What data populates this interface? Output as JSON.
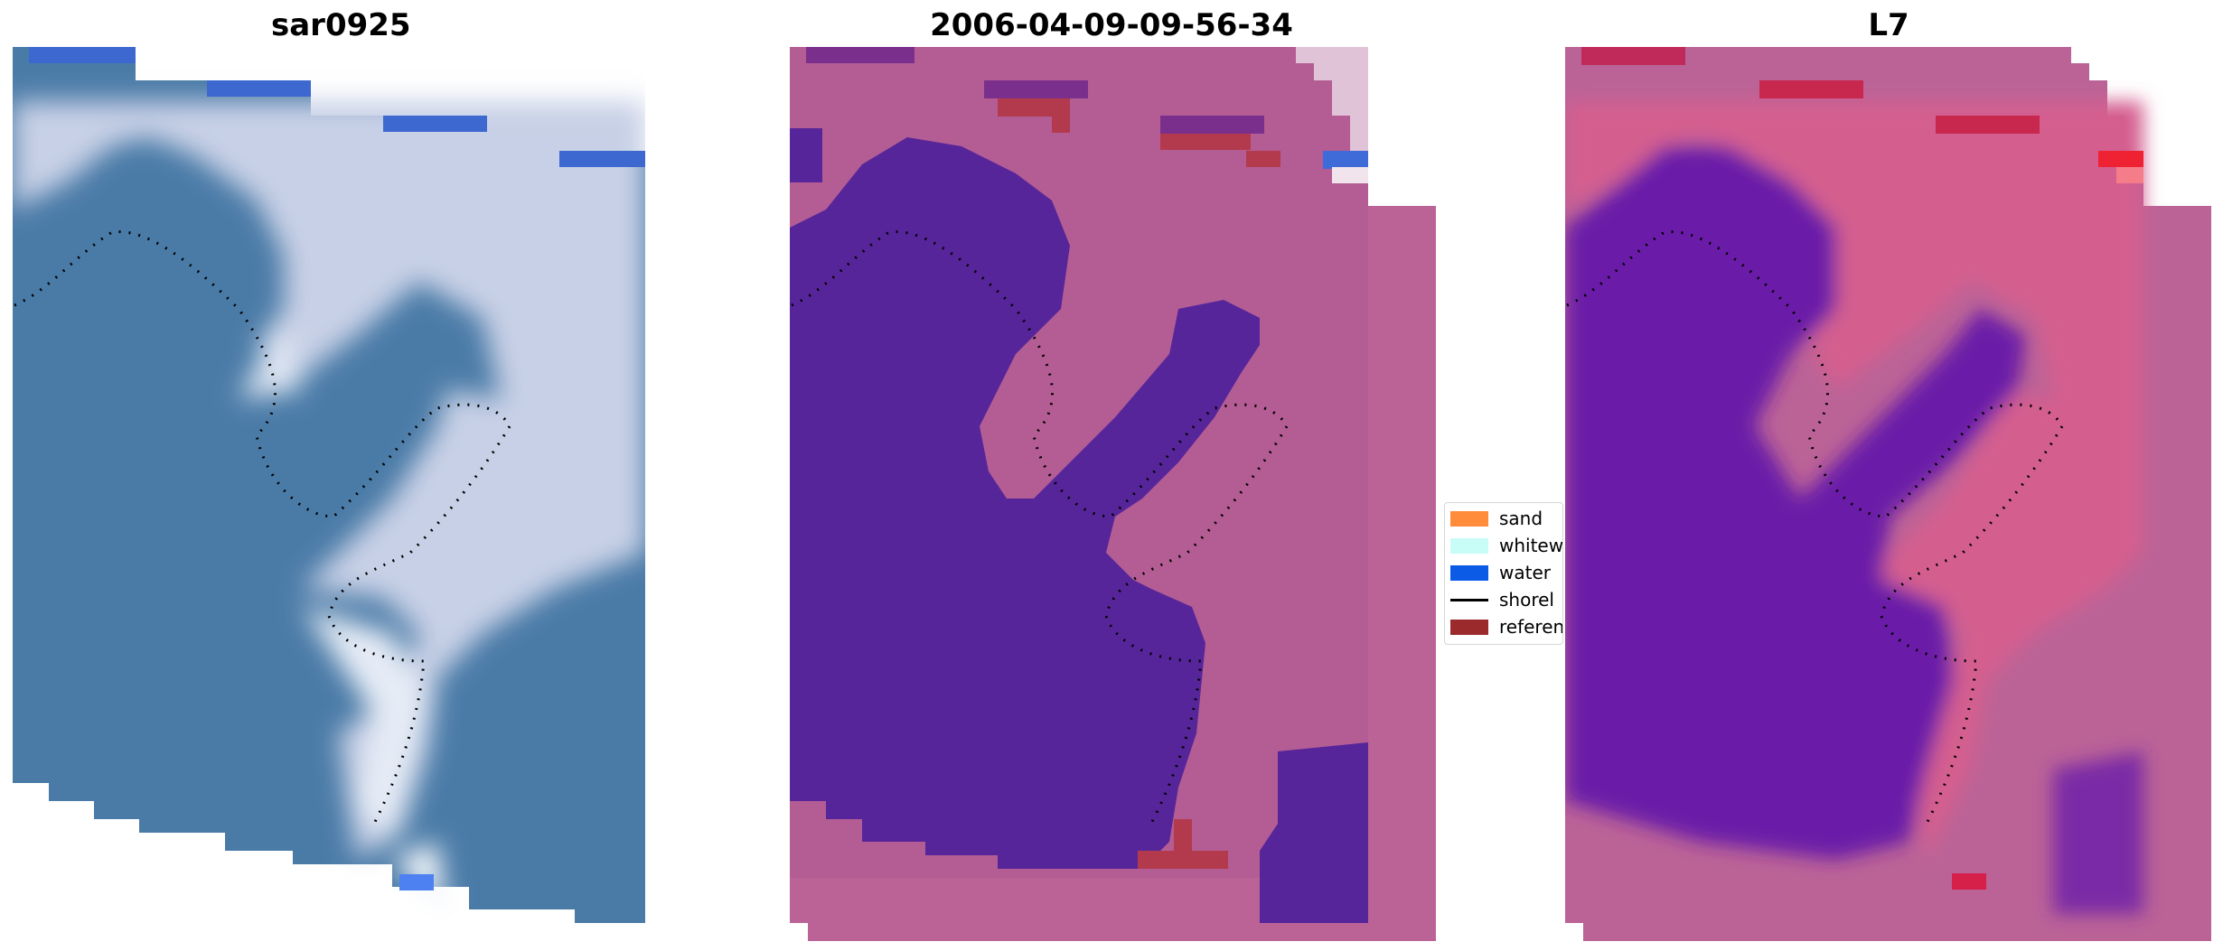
{
  "panels": [
    {
      "title": "sar0925"
    },
    {
      "title": "2006-04-09-09-56-34"
    },
    {
      "title": "L7"
    }
  ],
  "legend": {
    "items": [
      {
        "label": "sand",
        "color": "#ff8c3a",
        "type": "patch"
      },
      {
        "label": "whitew",
        "color": "#c8fcf6",
        "type": "patch"
      },
      {
        "label": "water",
        "color": "#0b5be6",
        "type": "patch"
      },
      {
        "label": "shorel",
        "color": "#000000",
        "type": "line"
      },
      {
        "label": "referen",
        "color": "#9a2a2c",
        "type": "patch"
      }
    ]
  },
  "colors": {
    "land_rgb": "#c9d1e6",
    "water_rgb": "#4a7ba7",
    "class_overlay": "#bb6397",
    "water_class": "#57259a",
    "reference": "#b33a4c",
    "ndwi_land": "#d45e8f",
    "ndwi_water": "#6a1aa8"
  }
}
